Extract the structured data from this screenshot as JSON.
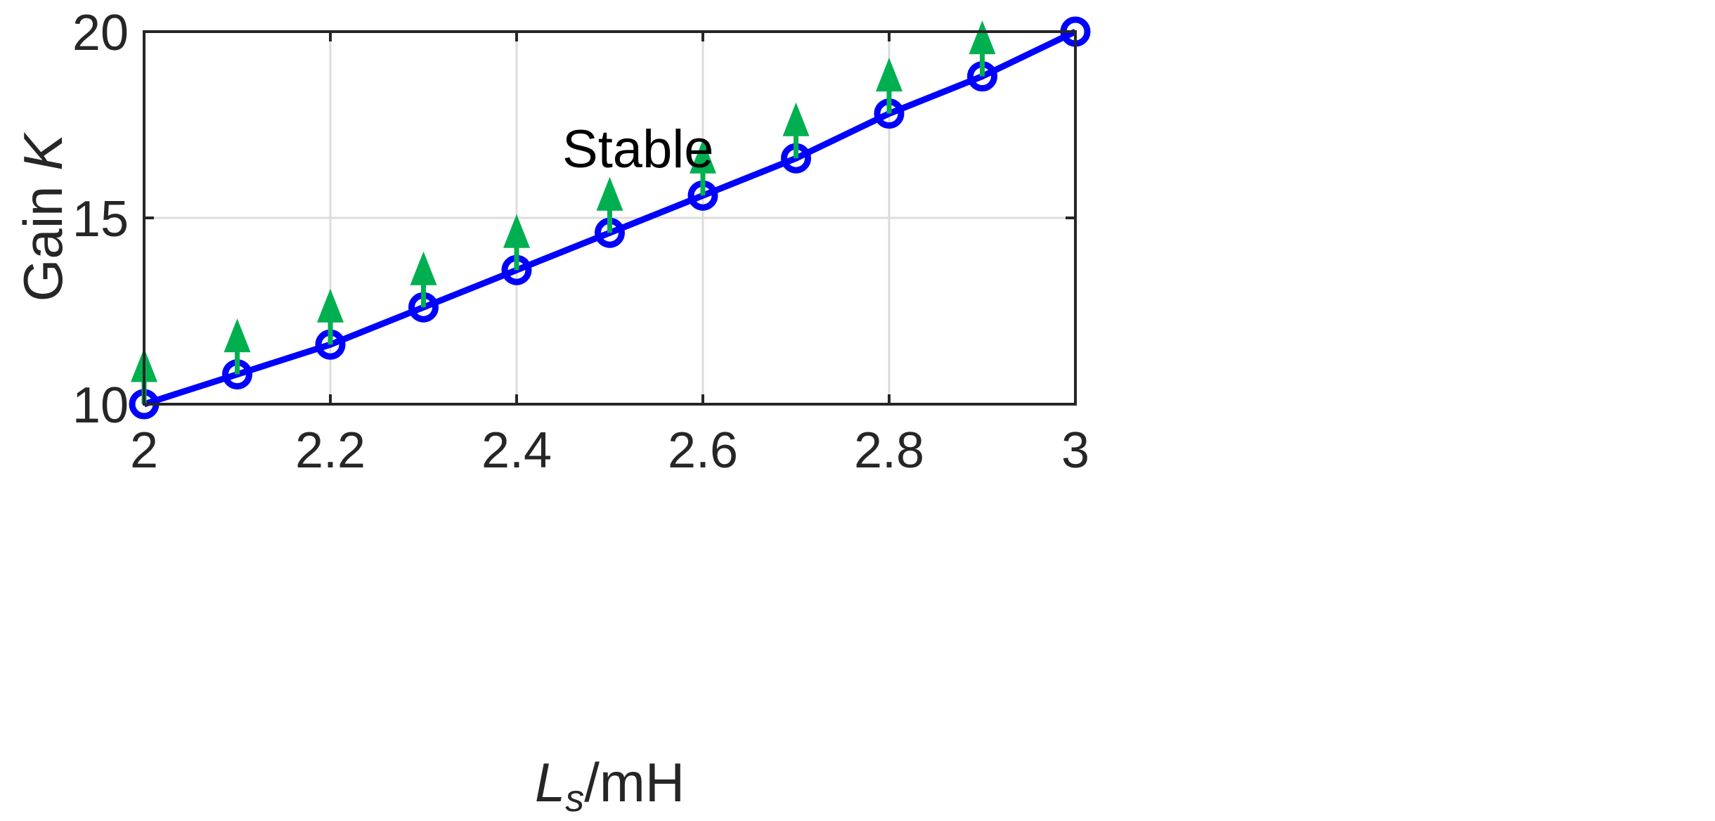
{
  "chart_data": {
    "type": "line",
    "x": [
      2.0,
      2.1,
      2.2,
      2.3,
      2.4,
      2.5,
      2.6,
      2.7,
      2.8,
      2.9,
      3.0
    ],
    "series": [
      {
        "values": [
          10.0,
          10.8,
          11.6,
          12.6,
          13.6,
          14.6,
          15.6,
          16.6,
          17.8,
          18.8,
          20.0
        ]
      }
    ],
    "arrows": {
      "x": [
        2.0,
        2.1,
        2.2,
        2.3,
        2.4,
        2.5,
        2.6,
        2.7,
        2.8,
        2.9
      ],
      "from": [
        10.0,
        10.8,
        11.6,
        12.6,
        13.6,
        14.6,
        15.6,
        16.6,
        17.8,
        18.8
      ],
      "to": [
        11.5,
        12.3,
        13.1,
        14.1,
        15.1,
        16.1,
        17.1,
        18.1,
        19.3,
        20.3
      ]
    },
    "xlim": [
      2,
      3
    ],
    "ylim": [
      10,
      20
    ],
    "xticks": [
      2,
      2.2,
      2.4,
      2.6,
      2.8,
      3
    ],
    "xtick_labels": [
      "2",
      "2.2",
      "2.4",
      "2.6",
      "2.8",
      "3"
    ],
    "yticks": [
      10,
      15,
      20
    ],
    "ytick_labels": [
      "10",
      "15",
      "20"
    ],
    "xlabel_main": "L",
    "xlabel_sub": "s",
    "xlabel_unit": "/mH",
    "ylabel_text": "Gain ",
    "ylabel_var": "K",
    "annotation": "Stable",
    "grid": true,
    "colors": {
      "line": "#0000ff",
      "arrow": "#00b050",
      "frame": "#262626"
    }
  }
}
